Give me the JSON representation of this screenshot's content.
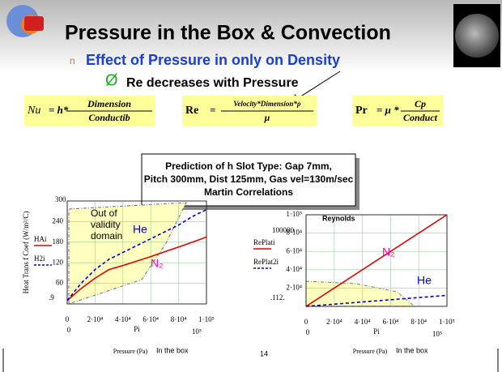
{
  "title": "Pressure in the Box & Convection",
  "bullet": {
    "marker": "n",
    "text": "Effect of Pressure in only on Density"
  },
  "sub_bullet": {
    "marker": "Ø",
    "text": "Re decreases with Pressure"
  },
  "formulas": [
    {
      "lhs": "Nu",
      "eq": "= h*",
      "numerator": "Dimension",
      "denominator": "Conductib"
    },
    {
      "lhs": "Re",
      "eq": "=",
      "numerator": "Velocity*Dimension*ρ",
      "denominator": "μ"
    },
    {
      "lhs": "Pr",
      "eq": "= μ *",
      "numerator": "Cp",
      "denominator": "Conduct"
    }
  ],
  "box": {
    "lines": [
      "Prediction of h Slot Type: Gap 7mm,",
      "Pitch 300mm, Dist 125mm, Gas vel=130m/sec",
      "Martin Correlations"
    ]
  },
  "page_number": "14",
  "chart_data": [
    {
      "type": "line",
      "y_label": "Heat Trans f Coef (W/m²/C)",
      "x_var": "Pi",
      "x_label": "Pressure (Pa)",
      "x_note": "In the box",
      "x_range_labels": [
        "0",
        "10⁵"
      ],
      "y_range_labels": [
        "300",
        ".9"
      ],
      "annotations": [
        "Out of",
        "validity",
        "domain",
        "He",
        "N₂"
      ],
      "x": [
        0,
        10000,
        20000,
        30000,
        40000,
        50000,
        60000,
        70000,
        80000,
        90000,
        100000
      ],
      "series": [
        {
          "name": "HAi",
          "color": "#e00000",
          "dash": false,
          "values": [
            10,
            45,
            75,
            100,
            112,
            125,
            138,
            152,
            166,
            180,
            195
          ]
        },
        {
          "name": "H2i",
          "color": "#0000cc",
          "dash": true,
          "values": [
            10,
            60,
            100,
            130,
            150,
            170,
            190,
            210,
            230,
            255,
            275
          ]
        }
      ],
      "xlim": [
        0,
        100000
      ],
      "xticks": [
        0,
        {
          "value": 20000,
          "label": "2·10⁴"
        },
        {
          "value": 40000,
          "label": "4·10⁴"
        },
        {
          "value": 60000,
          "label": "6·10⁴"
        },
        {
          "value": 80000,
          "label": "8·10⁴"
        },
        {
          "value": 100000,
          "label": "1·10⁵"
        }
      ],
      "ylim": [
        0,
        300
      ],
      "yticks": [
        60,
        120,
        180,
        240
      ],
      "grid": true
    },
    {
      "type": "line",
      "title": "Reynolds",
      "x_var": "Pi",
      "x_label": "Pressure (Pa)",
      "x_note": "In the box",
      "x_range_labels": [
        "0",
        "10⁵"
      ],
      "y_range_labels": [
        "100000",
        ".112."
      ],
      "annotations": [
        "N₂",
        "He"
      ],
      "x": [
        0,
        100000
      ],
      "series": [
        {
          "name": "RePlati",
          "color": "#e00000",
          "dash": false,
          "values": [
            0,
            100000
          ]
        },
        {
          "name": "RePlat2i",
          "color": "#0000cc",
          "dash": true,
          "values": [
            0,
            12000
          ]
        }
      ],
      "xlim": [
        0,
        100000
      ],
      "xticks": [
        0,
        {
          "value": 20000,
          "label": "2·10⁴"
        },
        {
          "value": 40000,
          "label": "4·10⁴"
        },
        {
          "value": 60000,
          "label": "6·10⁴"
        },
        {
          "value": 80000,
          "label": "8·10⁴"
        },
        {
          "value": 100000,
          "label": "1·10⁵"
        }
      ],
      "ylim": [
        0,
        100000
      ],
      "yticks": [
        {
          "value": 20000,
          "label": "2·10⁴"
        },
        {
          "value": 40000,
          "label": "4·10⁴"
        },
        {
          "value": 60000,
          "label": "6·10⁴"
        },
        {
          "value": 80000,
          "label": "8·10⁴"
        },
        {
          "value": 100000,
          "label": "1·10⁵"
        }
      ],
      "grid": true
    }
  ]
}
